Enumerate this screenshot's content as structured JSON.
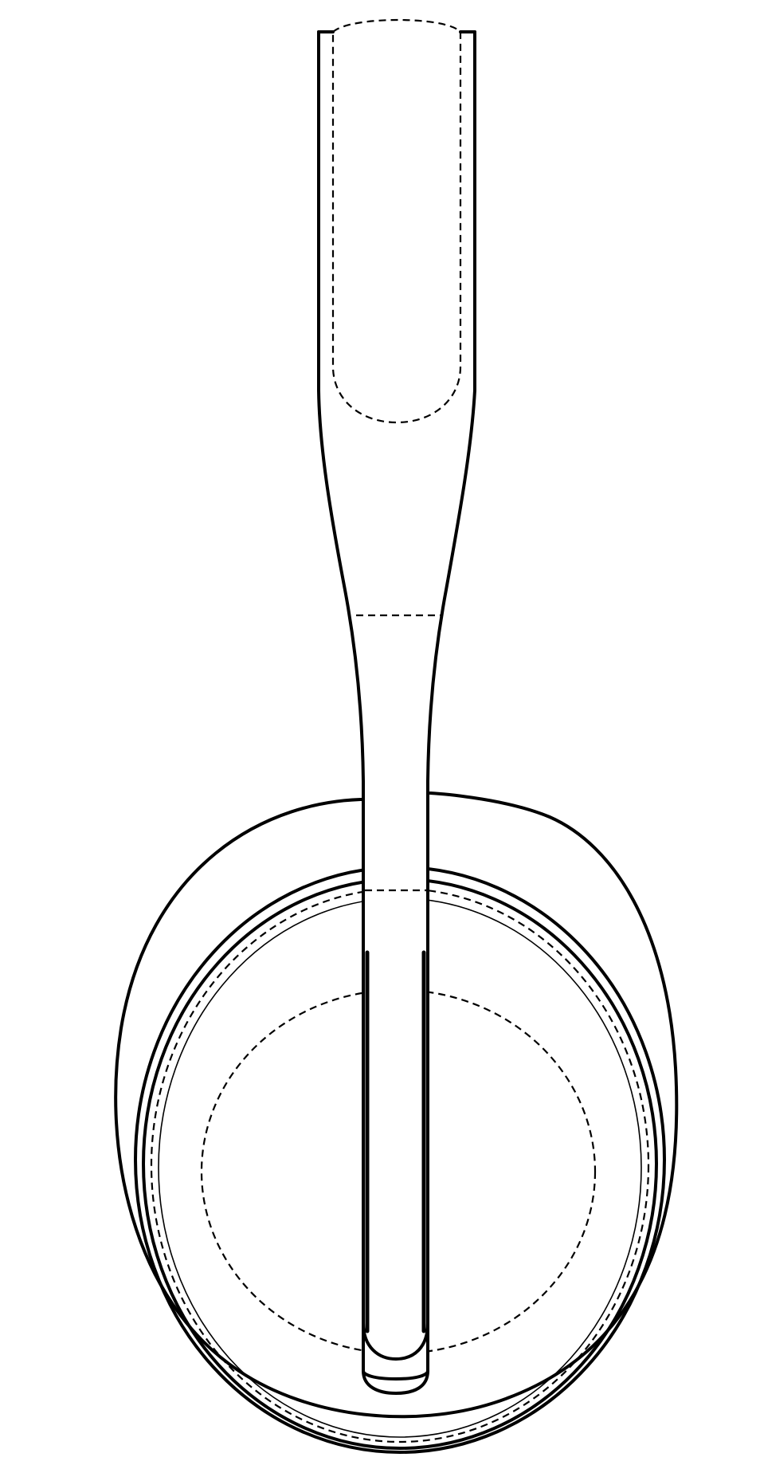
{
  "figure": {
    "line_color": "#000000",
    "background_color": "#ffffff"
  }
}
